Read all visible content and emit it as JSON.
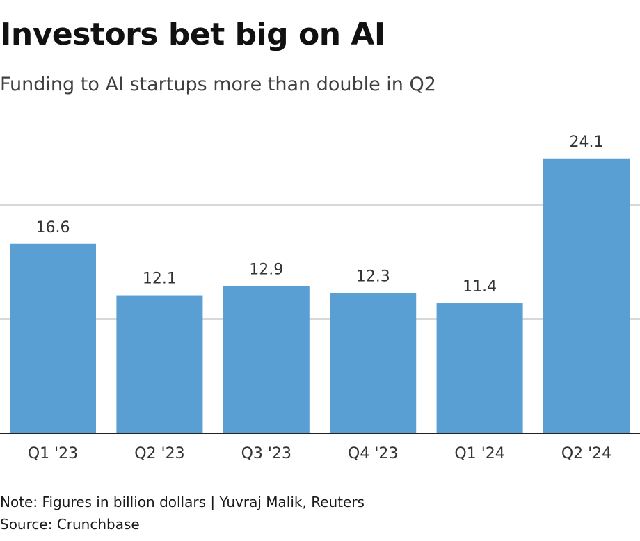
{
  "header": {
    "title": "Investors bet big on AI",
    "subtitle": "Funding to AI startups more than double in Q2"
  },
  "footer": {
    "note": "Note: Figures in billion dollars | Yuvraj Malik, Reuters",
    "source": "Source: Crunchbase"
  },
  "colors": {
    "bar": "#5a9fd4",
    "gridline": "#cccccc",
    "baseline": "#222222"
  },
  "chart_data": {
    "type": "bar",
    "categories": [
      "Q1 '23",
      "Q2 '23",
      "Q3 '23",
      "Q4 '23",
      "Q1 '24",
      "Q2 '24"
    ],
    "values": [
      16.6,
      12.1,
      12.9,
      12.3,
      11.4,
      24.1
    ],
    "data_labels": [
      "16.6",
      "12.1",
      "12.9",
      "12.3",
      "11.4",
      "24.1"
    ],
    "ylim": [
      0,
      25
    ],
    "gridlines_at": [
      10,
      20
    ],
    "grid": true,
    "legend": "none"
  }
}
